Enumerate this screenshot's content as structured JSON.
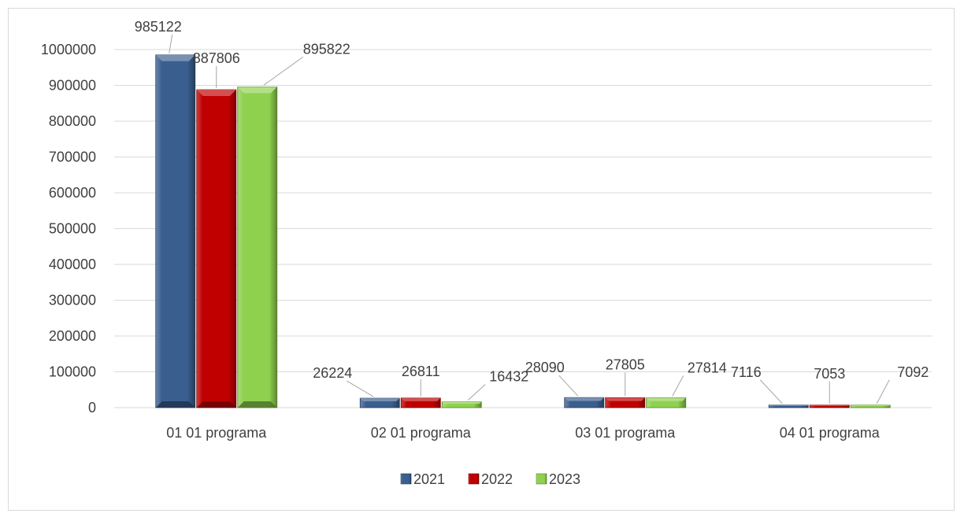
{
  "chart_data": {
    "type": "bar",
    "title": "",
    "xlabel": "",
    "ylabel": "",
    "categories": [
      "01 01 programa",
      "02 01 programa",
      "03 01 programa",
      "04 01 programa"
    ],
    "series": [
      {
        "name": "2021",
        "values": [
          985122,
          26224,
          28090,
          7116
        ],
        "color": "#3a5f8f"
      },
      {
        "name": "2022",
        "values": [
          887806,
          26811,
          27805,
          7053
        ],
        "color": "#c00000"
      },
      {
        "name": "2023",
        "values": [
          895822,
          16432,
          27814,
          7092
        ],
        "color": "#8fd14f"
      }
    ],
    "ylim": [
      0,
      1000000
    ],
    "yticks": [
      "0",
      "100000",
      "200000",
      "300000",
      "400000",
      "500000",
      "600000",
      "700000",
      "800000",
      "900000",
      "1000000"
    ],
    "grid": true,
    "legend": "bottom"
  }
}
